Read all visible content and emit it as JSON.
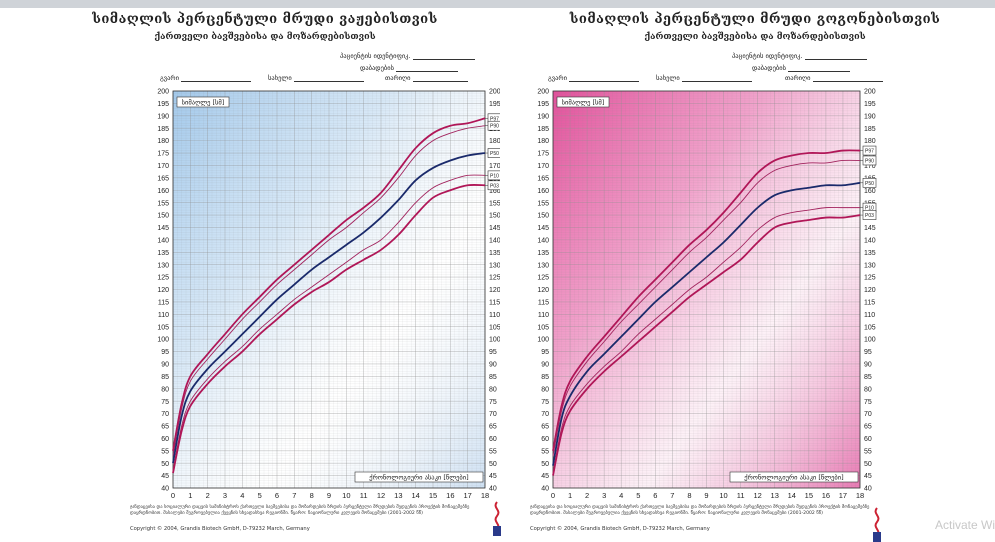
{
  "boys": {
    "title": "სიმაღლის პერცენტული მრუდი ვაჟებისთვის",
    "subtitle": "ქართველი ბავშვებისა და მოზარდებისთვის",
    "fields": {
      "patient": "პაციენტის იდენტიფიკ.",
      "birthdate": "დაბადების",
      "name": "გვარი",
      "firstname": "სახელი",
      "date": "თარიღი"
    },
    "ylabel": "სიმაღლე [სმ]",
    "xlabel": "ქრონოლოგიური ასაკი [წლები]",
    "footnote": "ჯანდაცვისა და სოციალური დაცვის სამინისტროს ქართველი ბავშვებისა და მოზარდების ზრდის პერცენტული მრუდების შედგენის პროექტის მონაცემებზე დაყრდნობით. მასალები შეგროვებულია ქვეყნის სხვადასხვა რეგიონში. წყარო: ნაციონალური კვლევის მონაცემები (2001-2002 წწ)",
    "copyright": "Copyright © 2004, Grandis Biotech GmbH, D-79232 March, Germany"
  },
  "girls": {
    "title": "სიმაღლის პერცენტული მრუდი გოგონებისთვის",
    "subtitle": "ქართველი ბავშვებისა და მოზარდებისთვის",
    "fields": {
      "patient": "პაციენტის იდენტიფიკ.",
      "birthdate": "დაბადების",
      "name": "გვარი",
      "firstname": "სახელი",
      "date": "თარიღი"
    },
    "ylabel": "სიმაღლე [სმ]",
    "xlabel": "ქრონოლოგიური ასაკი [წლები]",
    "footnote": "ჯანდაცვისა და სოციალური დაცვის სამინისტროს ქართველი ბავშვებისა და მოზარდების ზრდის პერცენტული მრუდების შედგენის პროექტის მონაცემებზე დაყრდნობით. მასალები შეგროვებულია ქვეყნის სხვადასხვა რეგიონში. წყარო: ნაციონალური კვლევის მონაცემები (2001-2002 წწ)",
    "copyright": "Copyright © 2004, Grandis Biotech GmbH, D-79232 March, Germany"
  },
  "watermark": "Activate Wi",
  "colors": {
    "boys_bg": "#a9cfee",
    "girls_bg": "#e6559f",
    "outer": "#b01657",
    "mid": "#a2245e",
    "p50": "#1a2a6b",
    "grid": "#8f8f8f"
  },
  "chart_data": [
    {
      "type": "line",
      "x": [
        0,
        0.5,
        1,
        2,
        3,
        4,
        5,
        6,
        7,
        8,
        9,
        10,
        11,
        12,
        13,
        14,
        15,
        16,
        17,
        18
      ],
      "xlim": [
        0,
        18
      ],
      "ylim": [
        40,
        200
      ],
      "xticks": [
        "0",
        "1",
        "2",
        "3",
        "4",
        "5",
        "6",
        "7",
        "8",
        "9",
        "10",
        "11",
        "12",
        "13",
        "14",
        "15",
        "16",
        "17",
        "18"
      ],
      "yticks": [
        "40",
        "45",
        "50",
        "55",
        "60",
        "65",
        "70",
        "75",
        "80",
        "85",
        "90",
        "95",
        "100",
        "105",
        "110",
        "115",
        "120",
        "125",
        "130",
        "135",
        "140",
        "145",
        "150",
        "155",
        "160",
        "165",
        "170",
        "175",
        "180",
        "185",
        "190",
        "195",
        "200"
      ],
      "grid": true,
      "series": [
        {
          "name": "P97",
          "values": [
            55,
            74,
            85,
            94,
            102,
            110,
            117,
            124,
            130,
            136,
            142,
            148,
            153,
            159,
            168,
            177,
            183,
            186,
            187,
            189
          ]
        },
        {
          "name": "P90",
          "values": [
            53,
            72,
            83,
            92,
            100,
            108,
            115,
            122,
            128,
            134,
            140,
            145,
            151,
            157,
            165,
            174,
            180,
            183,
            185,
            186
          ]
        },
        {
          "name": "P50",
          "values": [
            50,
            69,
            79,
            88,
            95,
            102,
            109,
            116,
            122,
            128,
            133,
            138,
            143,
            149,
            156,
            164,
            169,
            172,
            174,
            175
          ]
        },
        {
          "name": "P10",
          "values": [
            47,
            65,
            75,
            84,
            91,
            97,
            104,
            110,
            116,
            121,
            126,
            131,
            136,
            140,
            147,
            155,
            161,
            164,
            166,
            166
          ]
        },
        {
          "name": "P03",
          "values": [
            46,
            63,
            73,
            82,
            89,
            95,
            102,
            108,
            114,
            119,
            123,
            128,
            132,
            136,
            142,
            150,
            157,
            160,
            162,
            162
          ]
        }
      ]
    },
    {
      "type": "line",
      "x": [
        0,
        0.5,
        1,
        2,
        3,
        4,
        5,
        6,
        7,
        8,
        9,
        10,
        11,
        12,
        13,
        14,
        15,
        16,
        17,
        18
      ],
      "xlim": [
        0,
        18
      ],
      "ylim": [
        40,
        200
      ],
      "xticks": [
        "0",
        "1",
        "2",
        "3",
        "4",
        "5",
        "6",
        "7",
        "8",
        "9",
        "10",
        "11",
        "12",
        "13",
        "14",
        "15",
        "16",
        "17",
        "18"
      ],
      "yticks": [
        "40",
        "45",
        "50",
        "55",
        "60",
        "65",
        "70",
        "75",
        "80",
        "85",
        "90",
        "95",
        "100",
        "105",
        "110",
        "115",
        "120",
        "125",
        "130",
        "135",
        "140",
        "145",
        "150",
        "155",
        "160",
        "165",
        "170",
        "175",
        "180",
        "185",
        "190",
        "195",
        "200"
      ],
      "grid": true,
      "series": [
        {
          "name": "P97",
          "values": [
            55,
            73,
            83,
            93,
            101,
            109,
            117,
            124,
            131,
            138,
            144,
            151,
            159,
            167,
            172,
            174,
            175,
            175,
            176,
            176
          ]
        },
        {
          "name": "P90",
          "values": [
            53,
            71,
            81,
            91,
            99,
            107,
            114,
            121,
            128,
            135,
            141,
            148,
            155,
            163,
            168,
            170,
            171,
            171,
            172,
            172
          ]
        },
        {
          "name": "P50",
          "values": [
            49,
            68,
            77,
            87,
            94,
            101,
            108,
            115,
            121,
            127,
            133,
            139,
            146,
            153,
            158,
            160,
            161,
            162,
            162,
            163
          ]
        },
        {
          "name": "P10",
          "values": [
            46,
            64,
            73,
            82,
            89,
            95,
            102,
            108,
            114,
            120,
            125,
            131,
            137,
            144,
            149,
            151,
            152,
            153,
            153,
            153
          ]
        },
        {
          "name": "P03",
          "values": [
            45,
            62,
            71,
            80,
            87,
            93,
            99,
            105,
            111,
            117,
            122,
            127,
            132,
            139,
            145,
            147,
            148,
            149,
            149,
            150
          ]
        }
      ]
    }
  ]
}
